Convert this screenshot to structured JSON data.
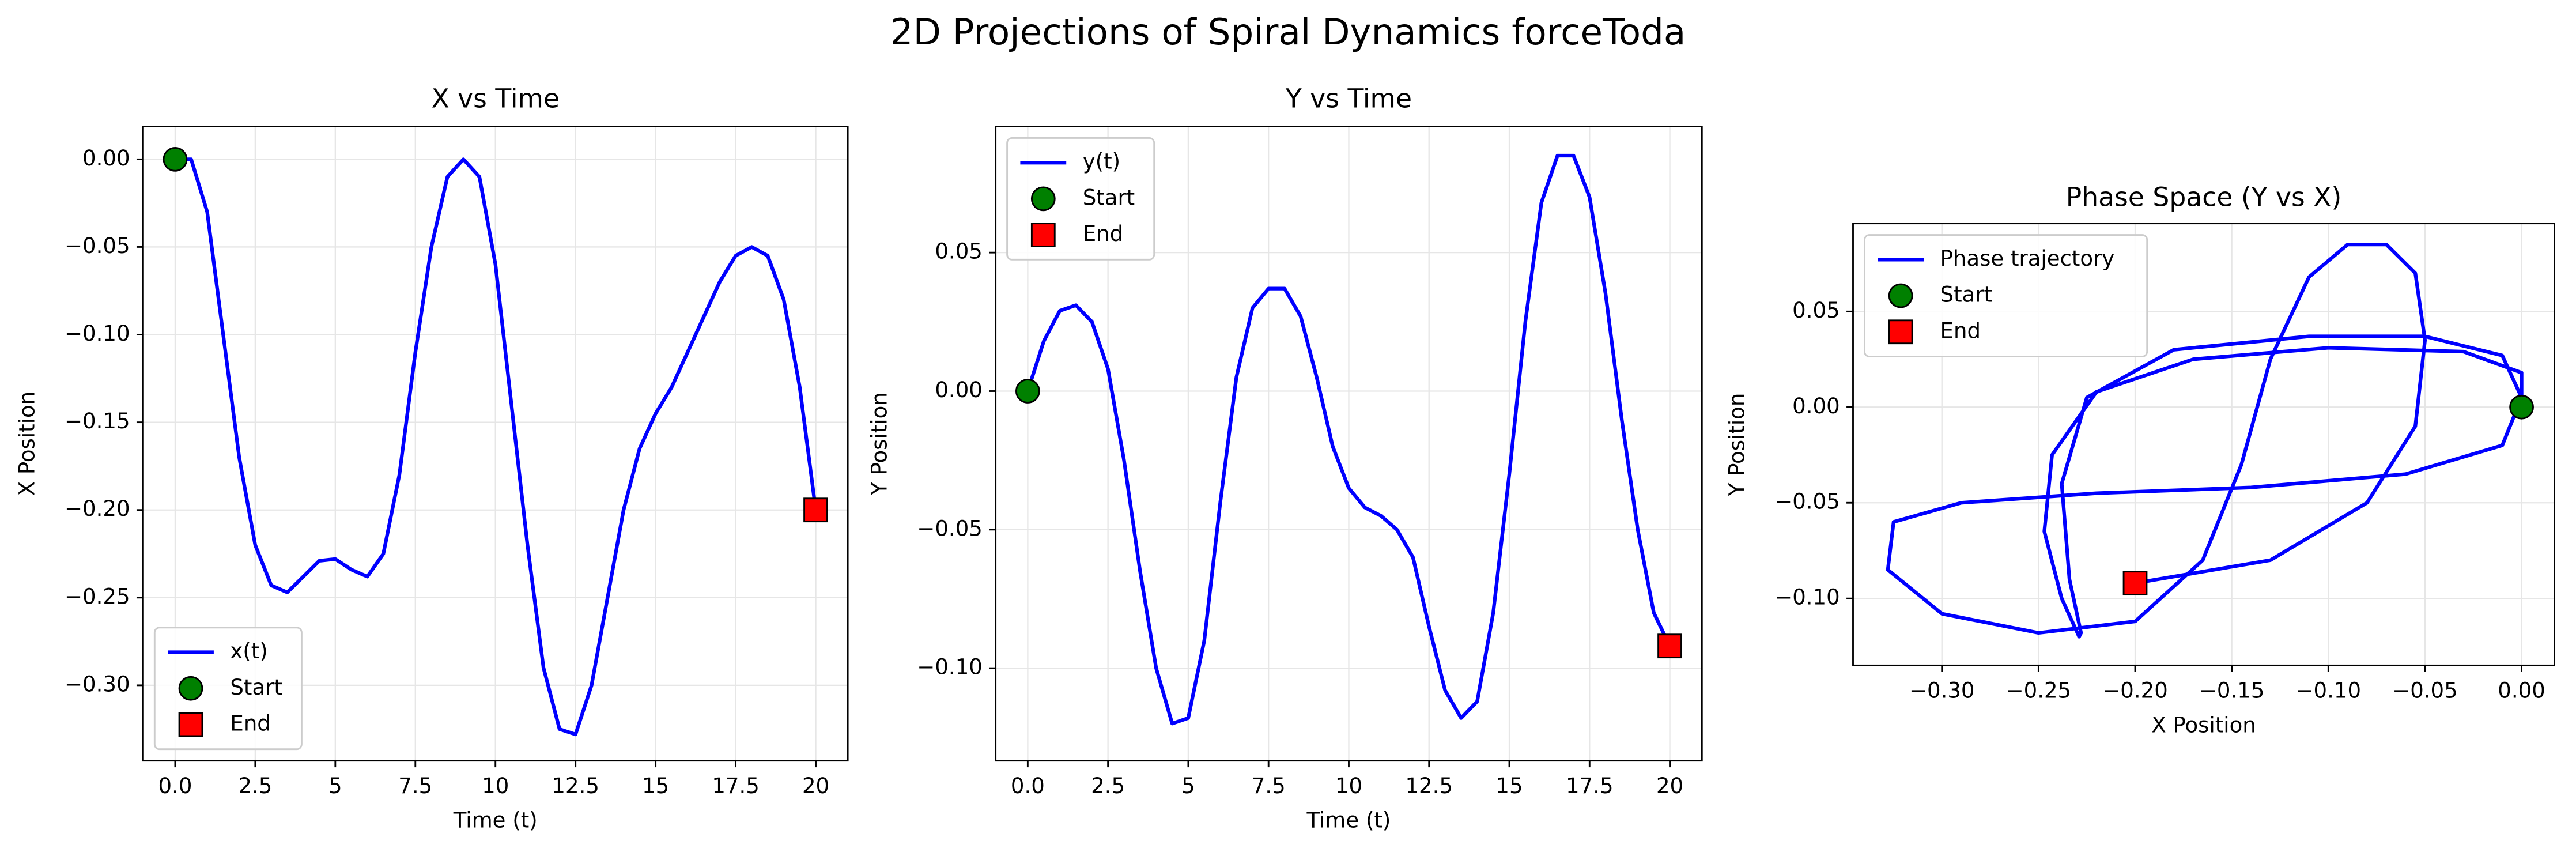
{
  "chart_data": [
    {
      "type": "line",
      "title": "X vs Time",
      "suptitle": "2D Projections of Spiral Dynamics forceToda",
      "xlabel": "Time (t)",
      "ylabel": "X Position",
      "grid": true,
      "legend": "lower left",
      "x": [
        0,
        0.5,
        1,
        1.5,
        2,
        2.5,
        3,
        3.5,
        4,
        4.5,
        5,
        5.5,
        6,
        6.5,
        7,
        7.5,
        8,
        8.5,
        9,
        9.5,
        10,
        10.5,
        11,
        11.5,
        12,
        12.5,
        13,
        13.5,
        14,
        14.5,
        15,
        15.5,
        16,
        16.5,
        17,
        17.5,
        18,
        18.5,
        19,
        19.5,
        20
      ],
      "series": [
        {
          "name": "x(t)",
          "color": "#0000ff",
          "values": [
            0,
            0.0,
            -0.03,
            -0.1,
            -0.17,
            -0.22,
            -0.243,
            -0.247,
            -0.238,
            -0.229,
            -0.228,
            -0.234,
            -0.238,
            -0.225,
            -0.18,
            -0.11,
            -0.05,
            -0.01,
            0.0,
            -0.01,
            -0.06,
            -0.14,
            -0.22,
            -0.29,
            -0.325,
            -0.328,
            -0.3,
            -0.25,
            -0.2,
            -0.165,
            -0.145,
            -0.13,
            -0.11,
            -0.09,
            -0.07,
            -0.055,
            -0.05,
            -0.055,
            -0.08,
            -0.13,
            -0.2
          ]
        },
        {
          "name": "Start",
          "color": "#008000",
          "marker": "circle",
          "x": [
            0
          ],
          "values": [
            0
          ]
        },
        {
          "name": "End",
          "color": "#ff0000",
          "marker": "square",
          "x": [
            20
          ],
          "values": [
            -0.2
          ]
        }
      ],
      "xlim": [
        -1,
        21
      ],
      "xticks": [
        {
          "value": 0,
          "label": "0.0"
        },
        2.5,
        5,
        7.5,
        10,
        12.5,
        15,
        17.5,
        20
      ],
      "xtick_labels_fixed": true,
      "ylim": [
        -0.343,
        0.0187
      ],
      "yticks": [
        {
          "value": 0,
          "label": "0.00"
        },
        {
          "value": -0.05,
          "label": "−0.05"
        },
        {
          "value": -0.1,
          "label": "−0.10"
        },
        {
          "value": -0.15,
          "label": "−0.15"
        },
        {
          "value": -0.2,
          "label": "−0.20"
        },
        {
          "value": -0.25,
          "label": "−0.25"
        },
        {
          "value": -0.3,
          "label": "−0.30"
        }
      ]
    },
    {
      "type": "line",
      "title": "Y vs Time",
      "xlabel": "Time (t)",
      "ylabel": "Y Position",
      "grid": true,
      "legend": "upper left",
      "x": [
        0,
        0.5,
        1,
        1.5,
        2,
        2.5,
        3,
        3.5,
        4,
        4.5,
        5,
        5.5,
        6,
        6.5,
        7,
        7.5,
        8,
        8.5,
        9,
        9.5,
        10,
        10.5,
        11,
        11.5,
        12,
        12.5,
        13,
        13.5,
        14,
        14.5,
        15,
        15.5,
        16,
        16.5,
        17,
        17.5,
        18,
        18.5,
        19,
        19.5,
        20
      ],
      "series": [
        {
          "name": "y(t)",
          "color": "#0000ff",
          "values": [
            0,
            0.018,
            0.029,
            0.031,
            0.025,
            0.008,
            -0.025,
            -0.065,
            -0.1,
            -0.12,
            -0.118,
            -0.09,
            -0.04,
            0.005,
            0.03,
            0.037,
            0.037,
            0.027,
            0.005,
            -0.02,
            -0.035,
            -0.042,
            -0.045,
            -0.05,
            -0.06,
            -0.085,
            -0.108,
            -0.118,
            -0.112,
            -0.08,
            -0.03,
            0.025,
            0.068,
            0.085,
            0.085,
            0.07,
            0.035,
            -0.01,
            -0.05,
            -0.08,
            -0.092
          ]
        },
        {
          "name": "Start",
          "color": "#008000",
          "marker": "circle",
          "x": [
            0
          ],
          "values": [
            0
          ]
        },
        {
          "name": "End",
          "color": "#ff0000",
          "marker": "square",
          "x": [
            20
          ],
          "values": [
            -0.092
          ]
        }
      ],
      "xlim": [
        -1,
        21
      ],
      "xticks": [
        {
          "value": 0,
          "label": "0.0"
        },
        2.5,
        5,
        7.5,
        10,
        12.5,
        15,
        17.5,
        20
      ],
      "ylim": [
        -0.1334,
        0.0955
      ],
      "yticks": [
        {
          "value": -0.1,
          "label": "−0.10"
        },
        {
          "value": -0.05,
          "label": "−0.05"
        },
        {
          "value": 0,
          "label": "0.00"
        },
        {
          "value": 0.05,
          "label": "0.05"
        }
      ]
    },
    {
      "type": "line",
      "title": "Phase Space (Y vs X)",
      "xlabel": "X Position",
      "ylabel": "Y Position",
      "grid": true,
      "legend": "upper left",
      "x": [
        0,
        0.0,
        -0.03,
        -0.1,
        -0.17,
        -0.22,
        -0.243,
        -0.247,
        -0.238,
        -0.229,
        -0.228,
        -0.234,
        -0.238,
        -0.225,
        -0.18,
        -0.11,
        -0.05,
        -0.01,
        0.0,
        -0.01,
        -0.06,
        -0.14,
        -0.22,
        -0.29,
        -0.325,
        -0.328,
        -0.3,
        -0.25,
        -0.2,
        -0.165,
        -0.145,
        -0.13,
        -0.11,
        -0.09,
        -0.07,
        -0.055,
        -0.05,
        -0.055,
        -0.08,
        -0.13,
        -0.2
      ],
      "series": [
        {
          "name": "Phase trajectory",
          "color": "#0000ff",
          "values": [
            0,
            0.018,
            0.029,
            0.031,
            0.025,
            0.008,
            -0.025,
            -0.065,
            -0.1,
            -0.12,
            -0.118,
            -0.09,
            -0.04,
            0.005,
            0.03,
            0.037,
            0.037,
            0.027,
            0.005,
            -0.02,
            -0.035,
            -0.042,
            -0.045,
            -0.05,
            -0.06,
            -0.085,
            -0.108,
            -0.118,
            -0.112,
            -0.08,
            -0.03,
            0.025,
            0.068,
            0.085,
            0.085,
            0.07,
            0.035,
            -0.01,
            -0.05,
            -0.08,
            -0.092
          ]
        },
        {
          "name": "Start",
          "color": "#008000",
          "marker": "circle",
          "x": [
            0
          ],
          "values": [
            0
          ]
        },
        {
          "name": "End",
          "color": "#ff0000",
          "marker": "square",
          "x": [
            -0.2
          ],
          "values": [
            -0.092
          ]
        }
      ],
      "xlim": [
        -0.346,
        0.017
      ],
      "xticks": [
        {
          "value": -0.3,
          "label": "−0.30"
        },
        {
          "value": -0.25,
          "label": "−0.25"
        },
        {
          "value": -0.2,
          "label": "−0.20"
        },
        {
          "value": -0.15,
          "label": "−0.15"
        },
        {
          "value": -0.1,
          "label": "−0.10"
        },
        {
          "value": -0.05,
          "label": "−0.05"
        },
        {
          "value": 0,
          "label": "0.00"
        }
      ],
      "ylim": [
        -0.135,
        0.096
      ],
      "yticks": [
        {
          "value": -0.1,
          "label": "−0.10"
        },
        {
          "value": -0.05,
          "label": "−0.05"
        },
        {
          "value": 0,
          "label": "0.00"
        },
        {
          "value": 0.05,
          "label": "0.05"
        }
      ]
    }
  ]
}
